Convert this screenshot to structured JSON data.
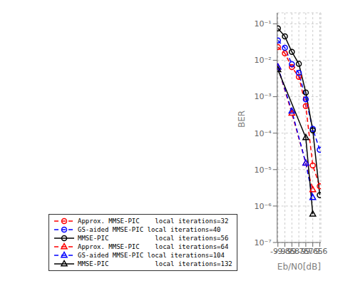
{
  "chart_data": {
    "type": "line",
    "xlabel": "Eb/N0[dB]",
    "ylabel": "BER",
    "x": [
      -9.9,
      -9.85,
      -9.8,
      -9.75,
      -9.7,
      -9.65,
      -9.6
    ],
    "series": [
      {
        "name": "Approx. MMSE-PIC    local iterations=32",
        "color": "#ff0000",
        "line_style": "dashed",
        "marker": "circle",
        "values": [
          0.023,
          0.0155,
          0.0065,
          0.0035,
          0.00055,
          1.3e-05,
          3.5e-06
        ]
      },
      {
        "name": "GS-aided MMSE-PIC local iterations=40",
        "color": "#0000ff",
        "line_style": "dashed",
        "marker": "circle",
        "values": [
          0.035,
          0.022,
          0.0078,
          0.0045,
          0.00085,
          0.00013,
          3.5e-05
        ]
      },
      {
        "name": "MMSE-PIC            local iterations=56",
        "color": "#000000",
        "line_style": "solid",
        "marker": "circle",
        "values": [
          0.075,
          0.045,
          0.017,
          0.008,
          0.0013,
          0.00012,
          2e-06
        ]
      },
      {
        "name": "Approx. MMSE-PIC    local iterations=64",
        "color": "#ff0000",
        "line_style": "dashed",
        "marker": "triangle",
        "values": [
          0.0065,
          null,
          0.00035,
          null,
          1.5e-05,
          2.8e-06,
          null
        ]
      },
      {
        "name": "GS-aided MMSE-PIC local iterations=104",
        "color": "#0000ff",
        "line_style": "dashed",
        "marker": "triangle",
        "values": [
          0.0065,
          null,
          0.0004,
          null,
          1.5e-05,
          1.7e-06,
          null
        ]
      },
      {
        "name": "MMSE-PIC            local iterations=132",
        "color": "#000000",
        "line_style": "solid",
        "marker": "triangle",
        "values": [
          0.0055,
          null,
          null,
          null,
          7.5e-05,
          6e-07,
          null
        ]
      }
    ],
    "xlim": [
      -9.905,
      -9.592
    ],
    "xticks": [
      -9.9,
      -9.85,
      -9.8,
      -9.75,
      -9.7,
      -9.65,
      -9.6
    ],
    "ylim": [
      1e-07,
      0.2
    ],
    "yticks": [
      {
        "value": 1e-07,
        "label": "10⁻⁷"
      },
      {
        "value": 1e-06,
        "label": "10⁻⁶"
      },
      {
        "value": 1e-05,
        "label": "10⁻⁵"
      },
      {
        "value": 0.0001,
        "label": "10⁻⁴"
      },
      {
        "value": 0.001,
        "label": "10⁻³"
      },
      {
        "value": 0.01,
        "label": "10⁻²"
      },
      {
        "value": 0.1,
        "label": "10⁻¹"
      }
    ],
    "log": "y",
    "grid": true,
    "legend": "lower left"
  }
}
